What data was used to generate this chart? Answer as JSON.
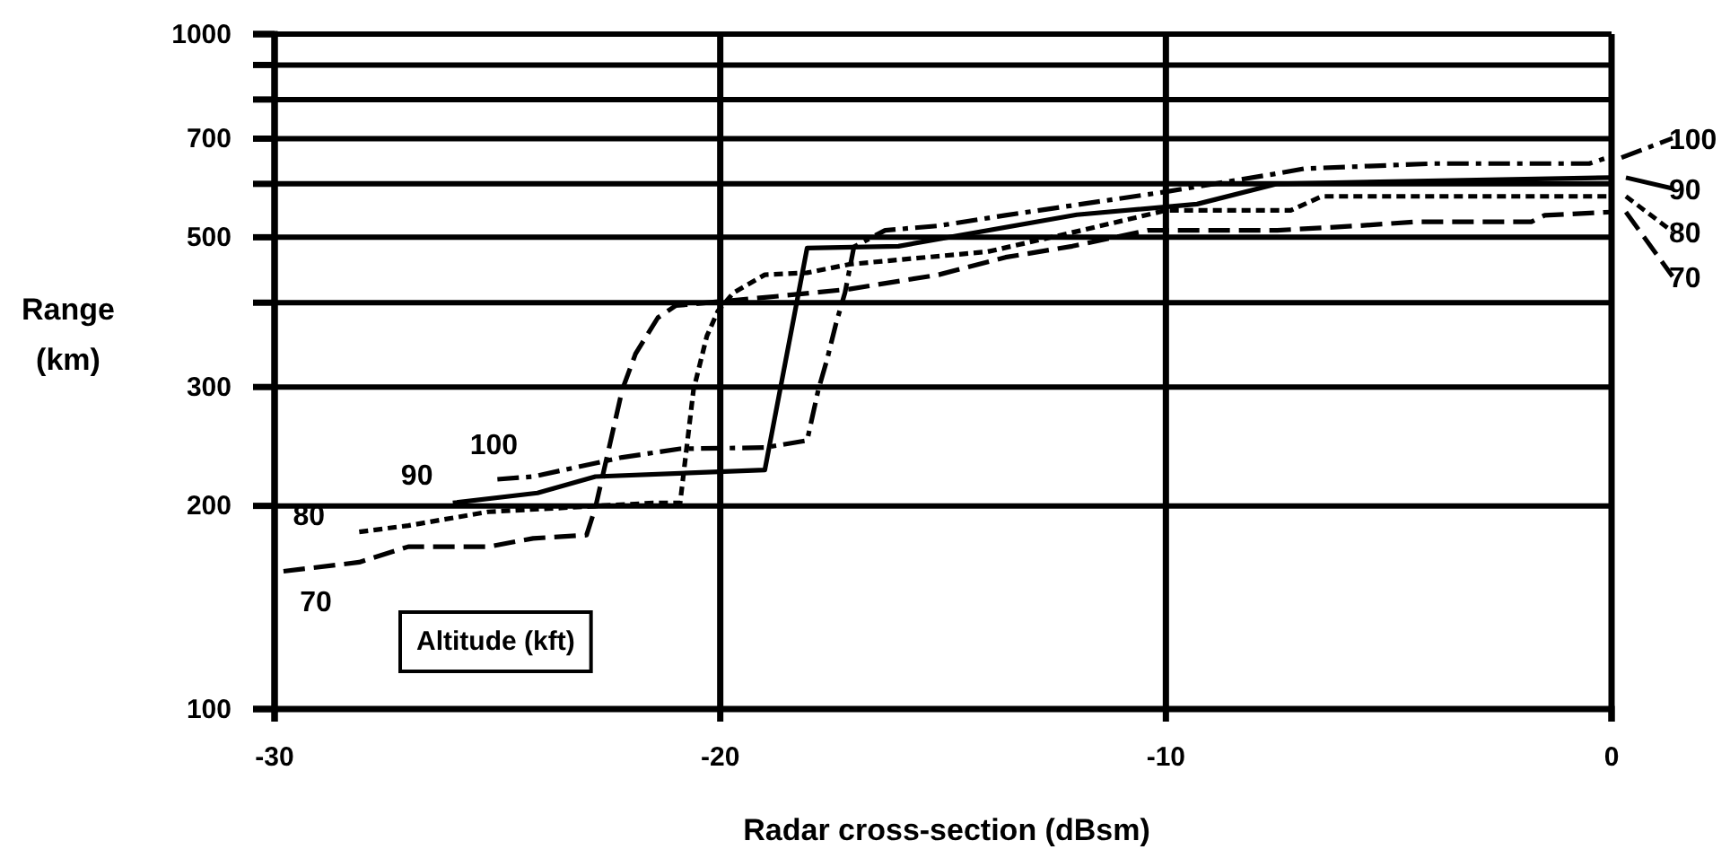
{
  "chart_data": {
    "type": "line",
    "xlabel": "Radar cross-section (dBsm)",
    "ylabel": "Range (km)",
    "log": "y",
    "xlim": [
      -30,
      0
    ],
    "xticks": [
      -30,
      -20,
      -10,
      0
    ],
    "ylim": [
      100,
      1000
    ],
    "yticks": [
      100,
      200,
      300,
      {
        "value": 400,
        "label": null
      },
      500,
      {
        "value": 600,
        "label": null
      },
      700,
      {
        "value": 800,
        "label": null
      },
      {
        "value": 900,
        "label": null
      },
      1000
    ],
    "grid": true,
    "legend": "right",
    "marker": "none",
    "annotations": [
      "Altitude (kft)"
    ],
    "series": [
      {
        "name": "70",
        "color": "#000000",
        "line_style": "dashed",
        "x": [
          -29.8,
          -28.1,
          -27,
          -25.2,
          -24.2,
          -23,
          -22.8,
          -22.5,
          -22.2,
          -21.9,
          -21.4,
          -21,
          -18.7,
          -17.1,
          -15.1,
          -13.6,
          -12.1,
          -10.4,
          -7.5,
          -5.7,
          -4.4,
          -1.8,
          -1.5,
          0
        ],
        "values": [
          160,
          165,
          174,
          174,
          179,
          181,
          199,
          243,
          297,
          336,
          380,
          396,
          409,
          419,
          440,
          467,
          485,
          512,
          512,
          520,
          527,
          527,
          539,
          545
        ]
      },
      {
        "name": "80",
        "color": "#000000",
        "line_style": "dotted",
        "x": [
          -28.1,
          -27,
          -25.2,
          -21.5,
          -20.9,
          -20.6,
          -20.3,
          -20.05,
          -19.7,
          -19,
          -18.05,
          -17.1,
          -14,
          -12,
          -10,
          -7.2,
          -6.5,
          0
        ],
        "values": [
          183,
          187,
          196,
          202,
          202,
          297,
          357,
          389,
          414,
          440,
          443,
          456,
          476,
          510,
          548,
          548,
          575,
          575
        ]
      },
      {
        "name": "90",
        "color": "#000000",
        "line_style": "solid",
        "x": [
          -26,
          -24.1,
          -22.8,
          -19,
          -18.05,
          -16,
          -12,
          -9.3,
          -7.5,
          0
        ],
        "values": [
          202,
          209,
          221,
          226,
          482,
          485,
          540,
          560,
          600,
          613
        ]
      },
      {
        "name": "100",
        "color": "#000000",
        "line_style": "dashdot",
        "x": [
          -25,
          -24.2,
          -22.2,
          -20.9,
          -19,
          -18.05,
          -17.8,
          -17.6,
          -17.4,
          -17.2,
          -17,
          -16.3,
          -15.1,
          -13.6,
          -10,
          -7.6,
          -6.9,
          -4,
          -0.5,
          -0.1
        ],
        "values": [
          219,
          221,
          236,
          243,
          244,
          250,
          297,
          330,
          373,
          414,
          484,
          512,
          520,
          539,
          584,
          620,
          632,
          643,
          643,
          656
        ]
      }
    ]
  }
}
